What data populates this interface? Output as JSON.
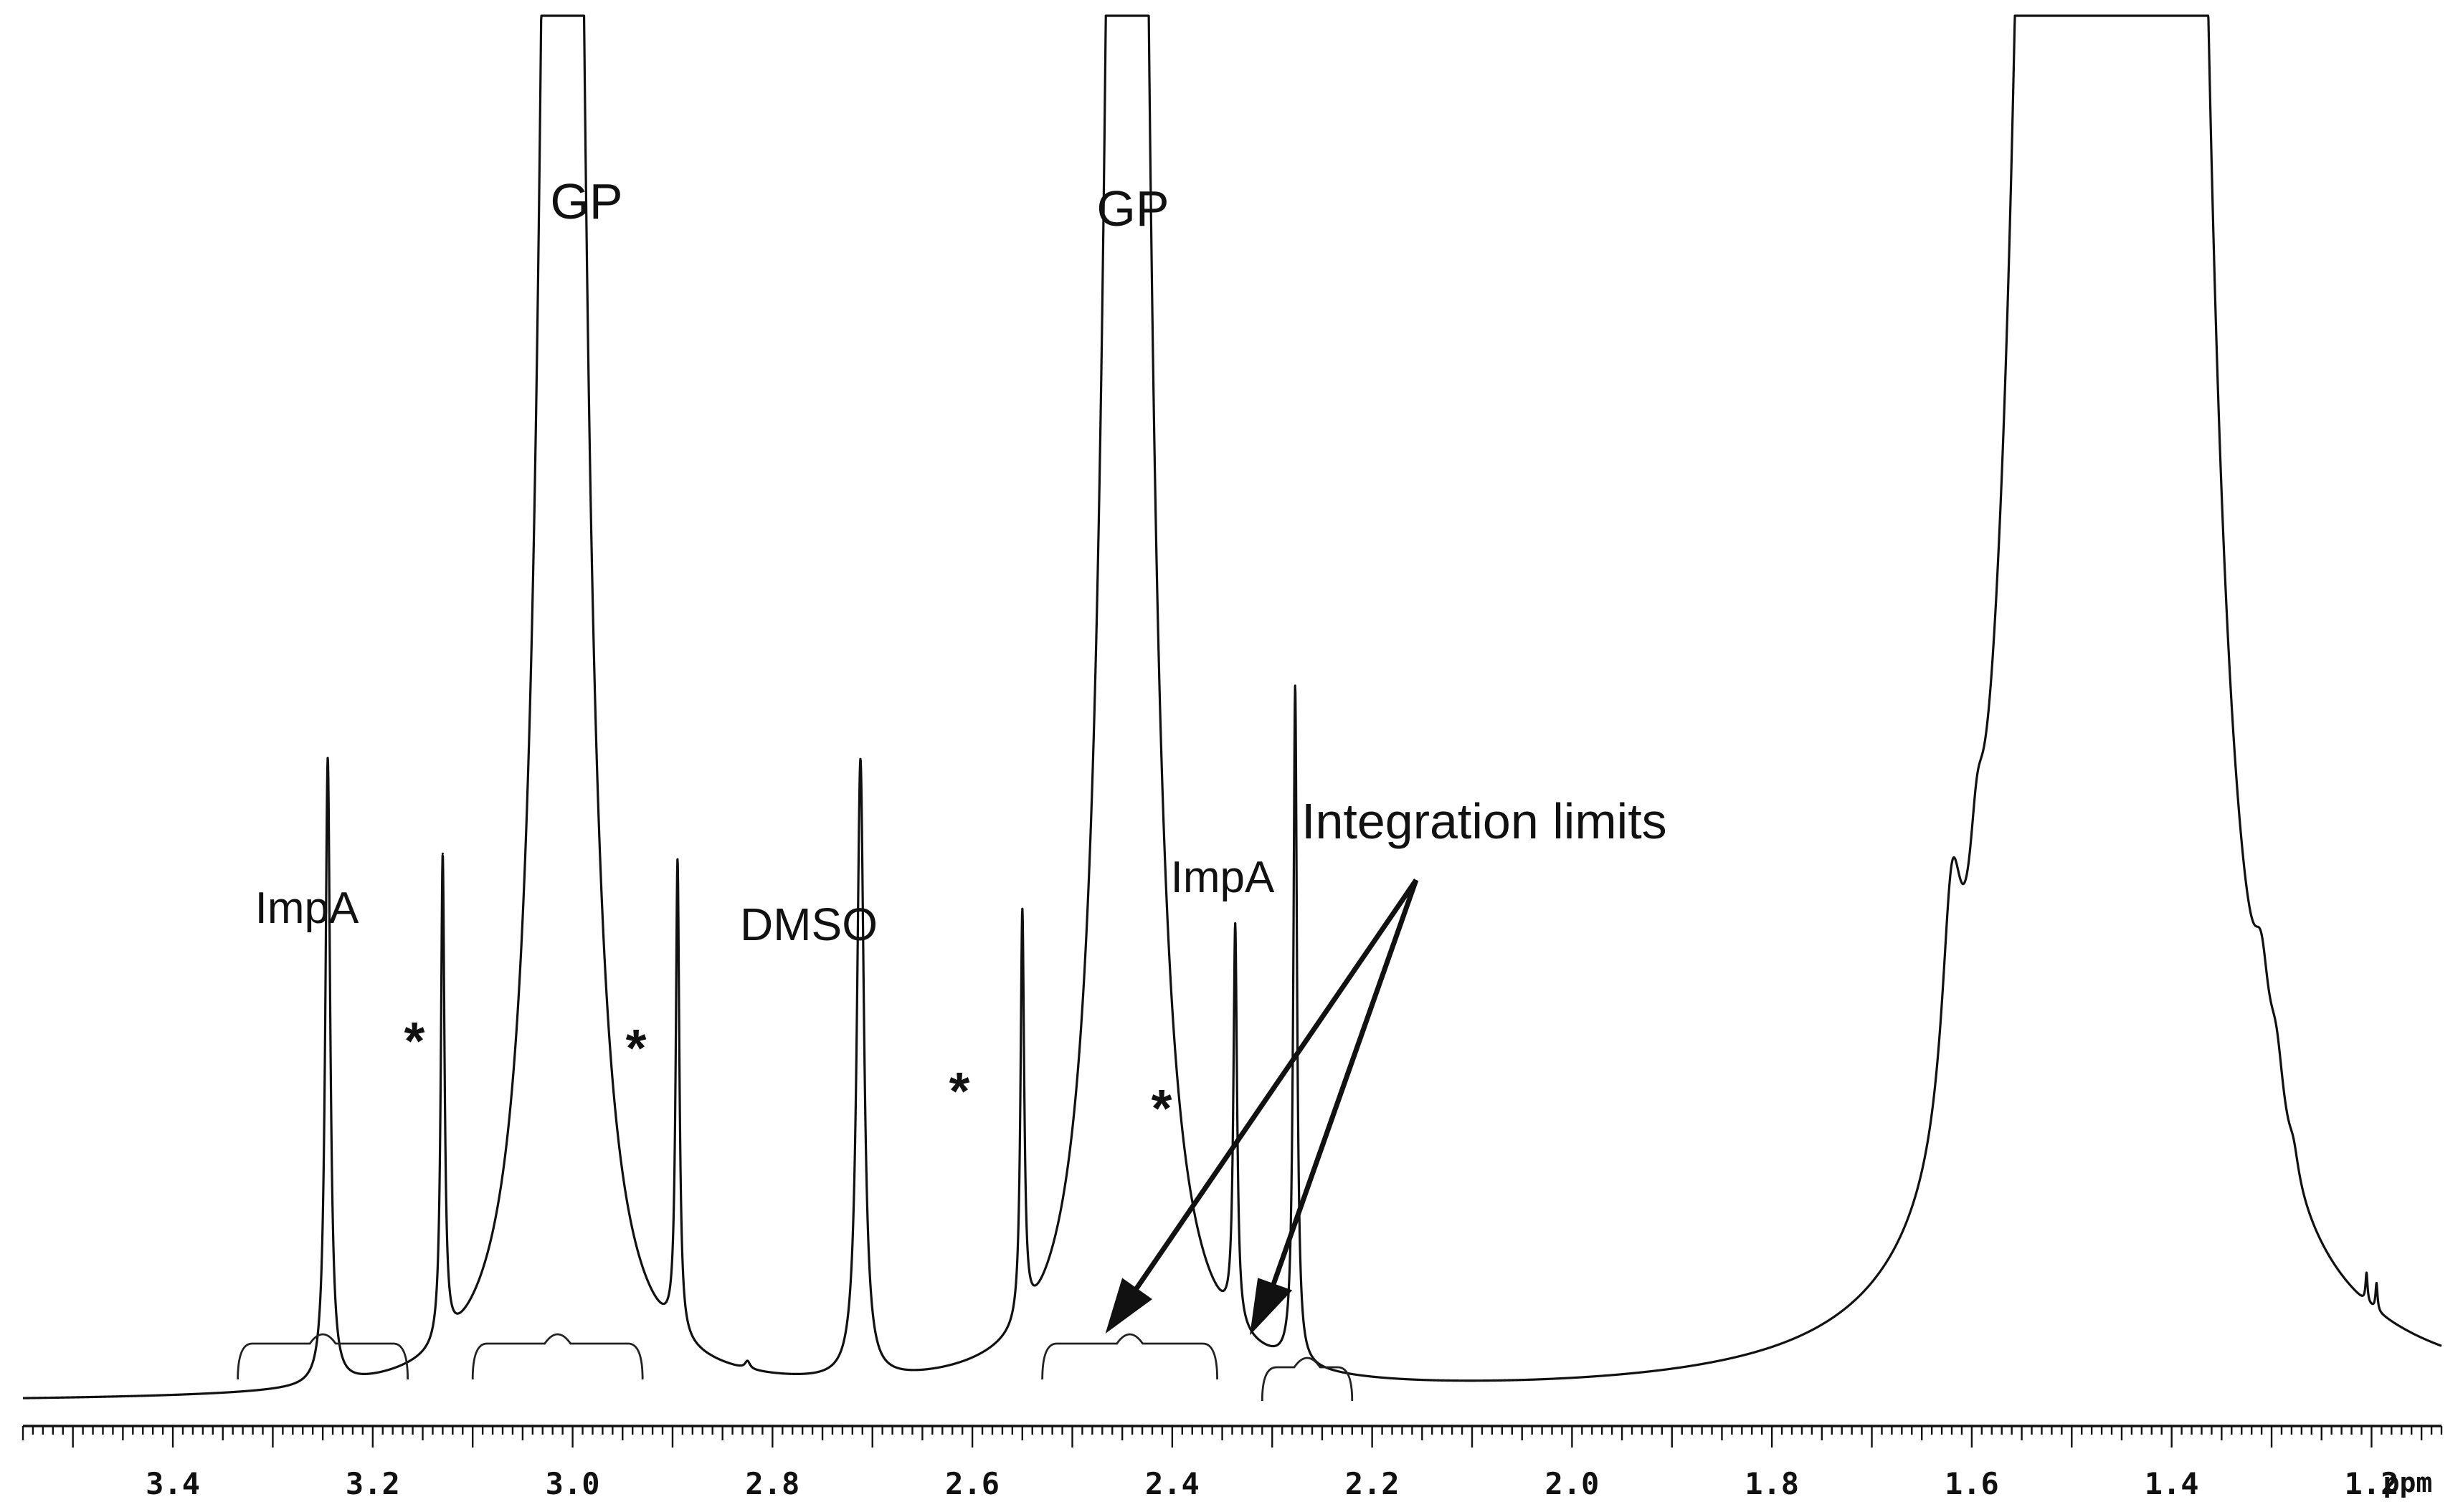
{
  "chart_data": {
    "type": "line",
    "title": "",
    "xlabel": "ppm",
    "ylabel": "",
    "xlim": [
      3.55,
      1.13
    ],
    "ylim": [
      0,
      1
    ],
    "x_reversed": true,
    "grid": false,
    "x_ticks": [
      {
        "value": 3.4,
        "label": "3.4"
      },
      {
        "value": 3.2,
        "label": "3.2"
      },
      {
        "value": 3.0,
        "label": "3.0"
      },
      {
        "value": 2.8,
        "label": "2.8"
      },
      {
        "value": 2.6,
        "label": "2.6"
      },
      {
        "value": 2.4,
        "label": "2.4"
      },
      {
        "value": 2.2,
        "label": "2.2"
      },
      {
        "value": 2.0,
        "label": "2.0"
      },
      {
        "value": 1.8,
        "label": "1.8"
      },
      {
        "value": 1.6,
        "label": "1.6"
      },
      {
        "value": 1.4,
        "label": "1.4"
      },
      {
        "value": 1.2,
        "label": "1.2"
      }
    ],
    "peaks": [
      {
        "name": "ImpA",
        "ppm": 3.245,
        "height": 0.324,
        "width": 0.003
      },
      {
        "name": "*",
        "ppm": 3.13,
        "height": 0.252,
        "width": 0.0022
      },
      {
        "name": "GP",
        "ppm": 3.01,
        "height": 3.0,
        "width": 0.012
      },
      {
        "name": "*",
        "ppm": 2.895,
        "height": 0.245,
        "width": 0.0022
      },
      {
        "name": "*",
        "ppm": 2.825,
        "height": 0.004,
        "width": 0.003
      },
      {
        "name": "DMSO",
        "ppm": 2.712,
        "height": 0.32,
        "width": 0.0042
      },
      {
        "name": "*",
        "ppm": 2.55,
        "height": 0.212,
        "width": 0.0022
      },
      {
        "name": "GP",
        "ppm": 2.445,
        "height": 3.0,
        "width": 0.012
      },
      {
        "name": "*",
        "ppm": 2.337,
        "height": 0.206,
        "width": 0.0022
      },
      {
        "name": "ImpA",
        "ppm": 2.277,
        "height": 0.35,
        "width": 0.0022
      },
      {
        "name": "",
        "ppm": 1.62,
        "height": 0.115,
        "width": 0.012
      },
      {
        "name": "",
        "ppm": 1.595,
        "height": 0.05,
        "width": 0.009
      },
      {
        "name": "",
        "ppm": 1.515,
        "height": 3.0,
        "width": 0.022
      },
      {
        "name": "",
        "ppm": 1.405,
        "height": 3.0,
        "width": 0.022
      },
      {
        "name": "",
        "ppm": 1.31,
        "height": 0.045,
        "width": 0.009
      },
      {
        "name": "",
        "ppm": 1.295,
        "height": 0.035,
        "width": 0.009
      },
      {
        "name": "",
        "ppm": 1.278,
        "height": 0.012,
        "width": 0.006
      },
      {
        "name": "",
        "ppm": 1.205,
        "height": 0.015,
        "width": 0.0012
      },
      {
        "name": "",
        "ppm": 1.195,
        "height": 0.014,
        "width": 0.0012
      }
    ],
    "integrals": [
      {
        "label": "ImpA",
        "from": 3.335,
        "to": 3.165
      },
      {
        "label": "GP",
        "from": 3.1,
        "to": 2.93
      },
      {
        "label": "GP",
        "from": 2.53,
        "to": 2.355
      },
      {
        "label": "ImpA",
        "from": 2.31,
        "to": 2.22
      }
    ],
    "annotations": [
      {
        "text": "ImpA",
        "near_ppm": 3.245
      },
      {
        "text": "*",
        "near_ppm": 3.13
      },
      {
        "text": "GP",
        "near_ppm": 3.01
      },
      {
        "text": "*",
        "near_ppm": 2.895
      },
      {
        "text": "DMSO",
        "near_ppm": 2.712
      },
      {
        "text": "*",
        "near_ppm": 2.55
      },
      {
        "text": "GP",
        "near_ppm": 2.445
      },
      {
        "text": "*",
        "near_ppm": 2.337
      },
      {
        "text": "ImpA",
        "near_ppm": 2.277
      },
      {
        "text": "Integration limits",
        "points_to_ppm": [
          2.4,
          2.25
        ]
      }
    ]
  }
}
